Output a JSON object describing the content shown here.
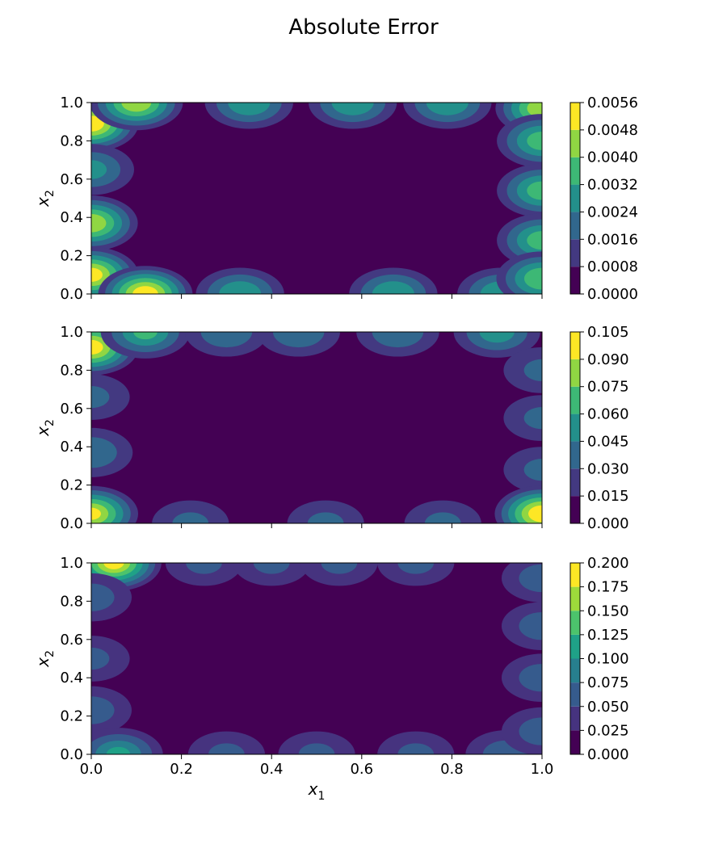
{
  "chart_data": [
    {
      "type": "heatmap",
      "title": "Absolute Error",
      "xlabel": "",
      "ylabel": "x2",
      "xlim": [
        0.0,
        1.0
      ],
      "ylim": [
        0.0,
        1.0
      ],
      "x_ticks": [
        "0.0",
        "0.2",
        "0.4",
        "0.6",
        "0.8",
        "1.0"
      ],
      "x_ticks_labeled": false,
      "y_ticks": [
        "0.0",
        "0.2",
        "0.4",
        "0.6",
        "0.8",
        "1.0"
      ],
      "colormap": "viridis",
      "colorbar_levels": [
        "0.0000",
        "0.0008",
        "0.0016",
        "0.0024",
        "0.0032",
        "0.0040",
        "0.0048",
        "0.0056"
      ],
      "colorbar_max": 0.0056,
      "hotspots": [
        {
          "x": 0.0,
          "y": 0.89,
          "value": 0.0052
        },
        {
          "x": 0.0,
          "y": 0.65,
          "value": 0.0025
        },
        {
          "x": 0.0,
          "y": 0.37,
          "value": 0.0045
        },
        {
          "x": 0.0,
          "y": 0.1,
          "value": 0.005
        },
        {
          "x": 0.12,
          "y": 0.0,
          "value": 0.0052
        },
        {
          "x": 0.1,
          "y": 1.0,
          "value": 0.0045
        },
        {
          "x": 0.33,
          "y": 0.0,
          "value": 0.003
        },
        {
          "x": 0.35,
          "y": 1.0,
          "value": 0.003
        },
        {
          "x": 0.58,
          "y": 1.0,
          "value": 0.003
        },
        {
          "x": 0.67,
          "y": 0.0,
          "value": 0.003
        },
        {
          "x": 0.79,
          "y": 1.0,
          "value": 0.003
        },
        {
          "x": 0.91,
          "y": 0.0,
          "value": 0.003
        },
        {
          "x": 1.0,
          "y": 0.97,
          "value": 0.0045
        },
        {
          "x": 1.0,
          "y": 0.8,
          "value": 0.0035
        },
        {
          "x": 1.0,
          "y": 0.54,
          "value": 0.0035
        },
        {
          "x": 1.0,
          "y": 0.28,
          "value": 0.0035
        },
        {
          "x": 1.0,
          "y": 0.08,
          "value": 0.0038
        }
      ]
    },
    {
      "type": "heatmap",
      "xlabel": "",
      "ylabel": "x2",
      "xlim": [
        0.0,
        1.0
      ],
      "ylim": [
        0.0,
        1.0
      ],
      "x_ticks": [
        "0.0",
        "0.2",
        "0.4",
        "0.6",
        "0.8",
        "1.0"
      ],
      "x_ticks_labeled": false,
      "y_ticks": [
        "0.0",
        "0.2",
        "0.4",
        "0.6",
        "0.8",
        "1.0"
      ],
      "colormap": "viridis",
      "colorbar_levels": [
        "0.000",
        "0.015",
        "0.030",
        "0.045",
        "0.060",
        "0.075",
        "0.090",
        "0.105"
      ],
      "colorbar_max": 0.105,
      "hotspots": [
        {
          "x": 0.0,
          "y": 0.92,
          "value": 0.095
        },
        {
          "x": 0.0,
          "y": 0.66,
          "value": 0.03
        },
        {
          "x": 0.0,
          "y": 0.37,
          "value": 0.04
        },
        {
          "x": 0.0,
          "y": 0.05,
          "value": 0.09
        },
        {
          "x": 0.12,
          "y": 1.0,
          "value": 0.06
        },
        {
          "x": 0.22,
          "y": 0.0,
          "value": 0.03
        },
        {
          "x": 0.3,
          "y": 1.0,
          "value": 0.04
        },
        {
          "x": 0.46,
          "y": 1.0,
          "value": 0.04
        },
        {
          "x": 0.52,
          "y": 0.0,
          "value": 0.03
        },
        {
          "x": 0.68,
          "y": 1.0,
          "value": 0.04
        },
        {
          "x": 0.78,
          "y": 0.0,
          "value": 0.03
        },
        {
          "x": 0.9,
          "y": 1.0,
          "value": 0.05
        },
        {
          "x": 1.0,
          "y": 0.8,
          "value": 0.03
        },
        {
          "x": 1.0,
          "y": 0.55,
          "value": 0.03
        },
        {
          "x": 1.0,
          "y": 0.28,
          "value": 0.03
        },
        {
          "x": 1.0,
          "y": 0.05,
          "value": 0.1
        }
      ]
    },
    {
      "type": "heatmap",
      "xlabel": "x1",
      "ylabel": "x2",
      "xlim": [
        0.0,
        1.0
      ],
      "ylim": [
        0.0,
        1.0
      ],
      "x_ticks": [
        "0.0",
        "0.2",
        "0.4",
        "0.6",
        "0.8",
        "1.0"
      ],
      "x_ticks_labeled": true,
      "y_ticks": [
        "0.0",
        "0.2",
        "0.4",
        "0.6",
        "0.8",
        "1.0"
      ],
      "colormap": "viridis",
      "colorbar_levels": [
        "0.000",
        "0.025",
        "0.050",
        "0.075",
        "0.100",
        "0.125",
        "0.150",
        "0.175",
        "0.200"
      ],
      "colorbar_max": 0.2,
      "hotspots": [
        {
          "x": 0.05,
          "y": 1.0,
          "value": 0.18
        },
        {
          "x": 0.0,
          "y": 0.82,
          "value": 0.06
        },
        {
          "x": 0.0,
          "y": 0.5,
          "value": 0.05
        },
        {
          "x": 0.0,
          "y": 0.23,
          "value": 0.06
        },
        {
          "x": 0.06,
          "y": 0.0,
          "value": 0.1
        },
        {
          "x": 0.25,
          "y": 1.0,
          "value": 0.05
        },
        {
          "x": 0.4,
          "y": 1.0,
          "value": 0.05
        },
        {
          "x": 0.3,
          "y": 0.0,
          "value": 0.05
        },
        {
          "x": 0.55,
          "y": 1.0,
          "value": 0.05
        },
        {
          "x": 0.5,
          "y": 0.0,
          "value": 0.05
        },
        {
          "x": 0.72,
          "y": 1.0,
          "value": 0.05
        },
        {
          "x": 0.72,
          "y": 0.0,
          "value": 0.05
        },
        {
          "x": 0.92,
          "y": 0.0,
          "value": 0.06
        },
        {
          "x": 1.0,
          "y": 0.92,
          "value": 0.06
        },
        {
          "x": 1.0,
          "y": 0.67,
          "value": 0.06
        },
        {
          "x": 1.0,
          "y": 0.4,
          "value": 0.06
        },
        {
          "x": 1.0,
          "y": 0.12,
          "value": 0.06
        }
      ]
    }
  ]
}
